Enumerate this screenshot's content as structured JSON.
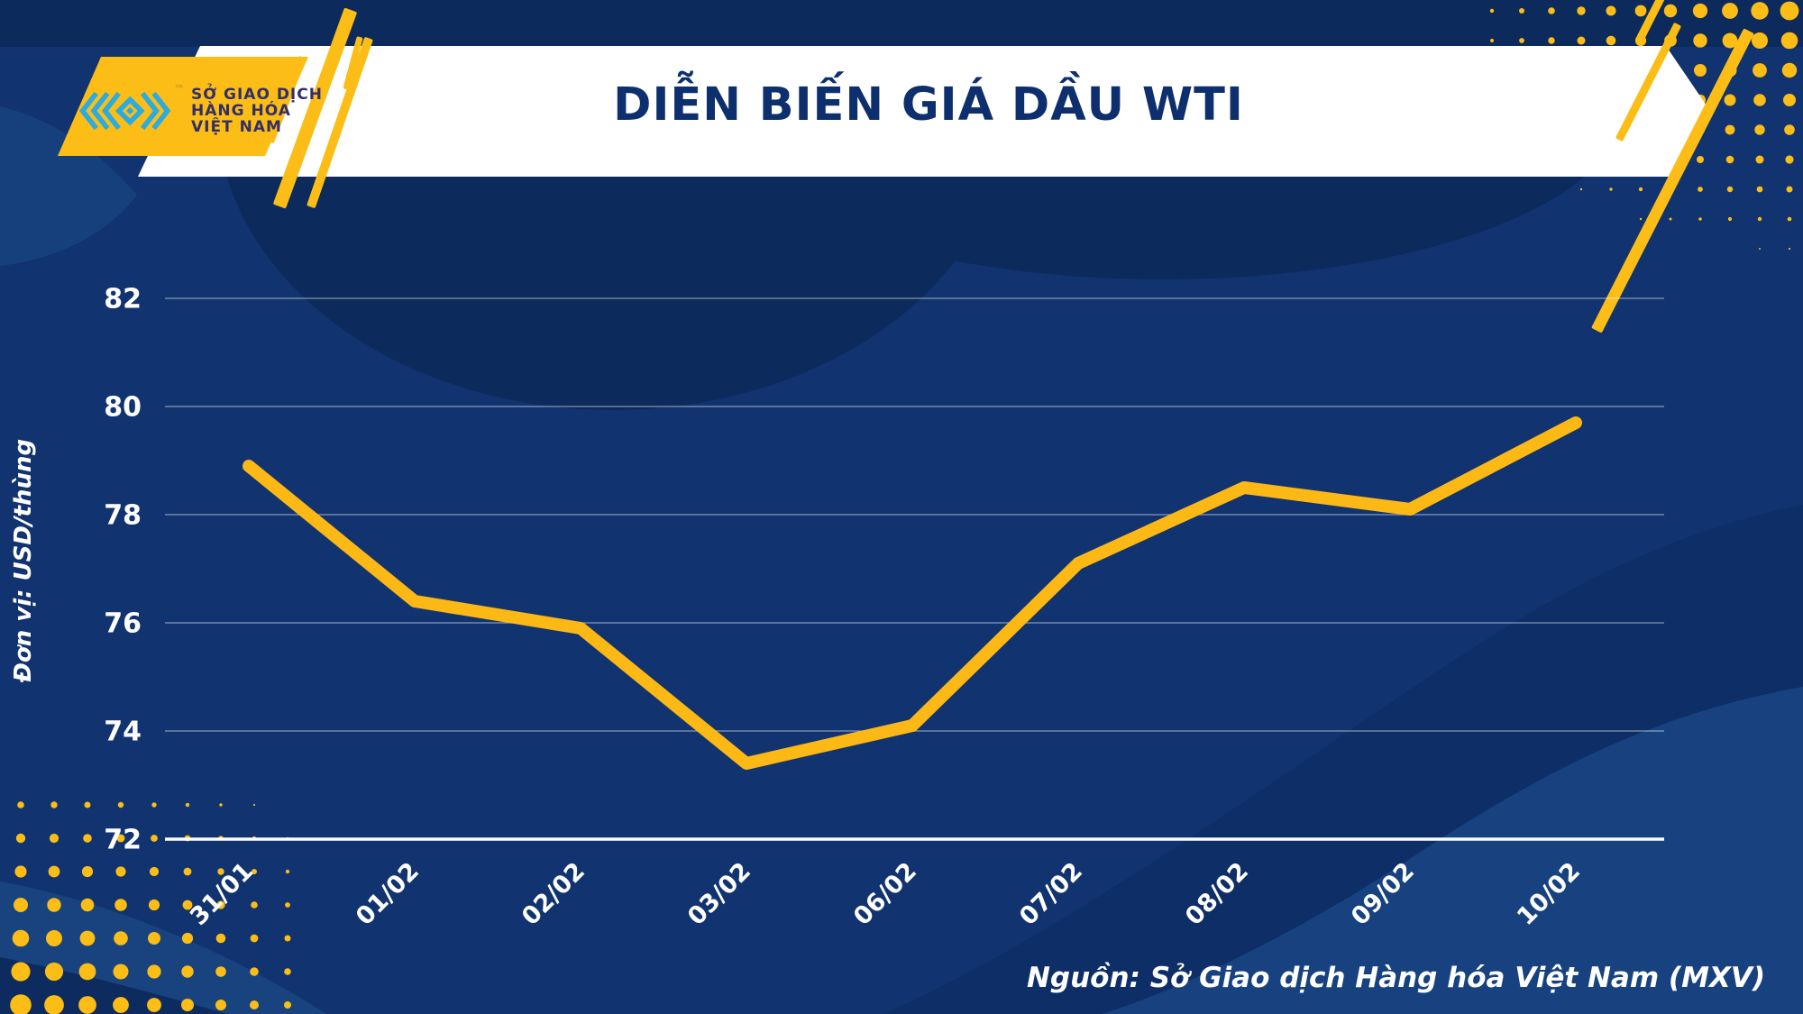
{
  "header": {
    "title": "DIỄN BIẾN GIÁ DẦU WTI",
    "logo": {
      "line1": "SỞ GIAO DỊCH",
      "line2": "HÀNG HÓA",
      "line3": "VIỆT NAM",
      "trademark": "™",
      "logomark": "mxv-chevron-logo"
    }
  },
  "chart_data": {
    "type": "line",
    "title": "DIỄN BIẾN GIÁ DẦU WTI",
    "unit_label": "Đơn vị: USD/thùng",
    "categories": [
      "31/01",
      "01/02",
      "02/02",
      "03/02",
      "06/02",
      "07/02",
      "08/02",
      "09/02",
      "10/02"
    ],
    "values": [
      78.9,
      76.4,
      75.9,
      73.4,
      74.1,
      77.1,
      78.5,
      78.1,
      79.7
    ],
    "series_name": "Giá dầu WTI",
    "xlabel": "",
    "ylabel": "USD/thùng",
    "ylim": [
      72,
      82
    ],
    "yticks": [
      82,
      80,
      78,
      76,
      74,
      72
    ],
    "grid": true,
    "legend": "none",
    "x_tick_rotation": -45,
    "line_color": "#FCB815"
  },
  "footer": {
    "source": "Nguồn: Sở Giao dịch Hàng hóa Việt Nam (MXV)"
  },
  "colors": {
    "background": "#11336F",
    "background_dark": "#0C2A5C",
    "background_light": "#17427F",
    "banner": "#FFFFFF",
    "accent_yellow": "#FBBD16",
    "line_yellow": "#FCB815",
    "logo_cyan": "#2AACE2",
    "title_text": "#0E2F6D",
    "axis_text": "#FFFFFF"
  }
}
